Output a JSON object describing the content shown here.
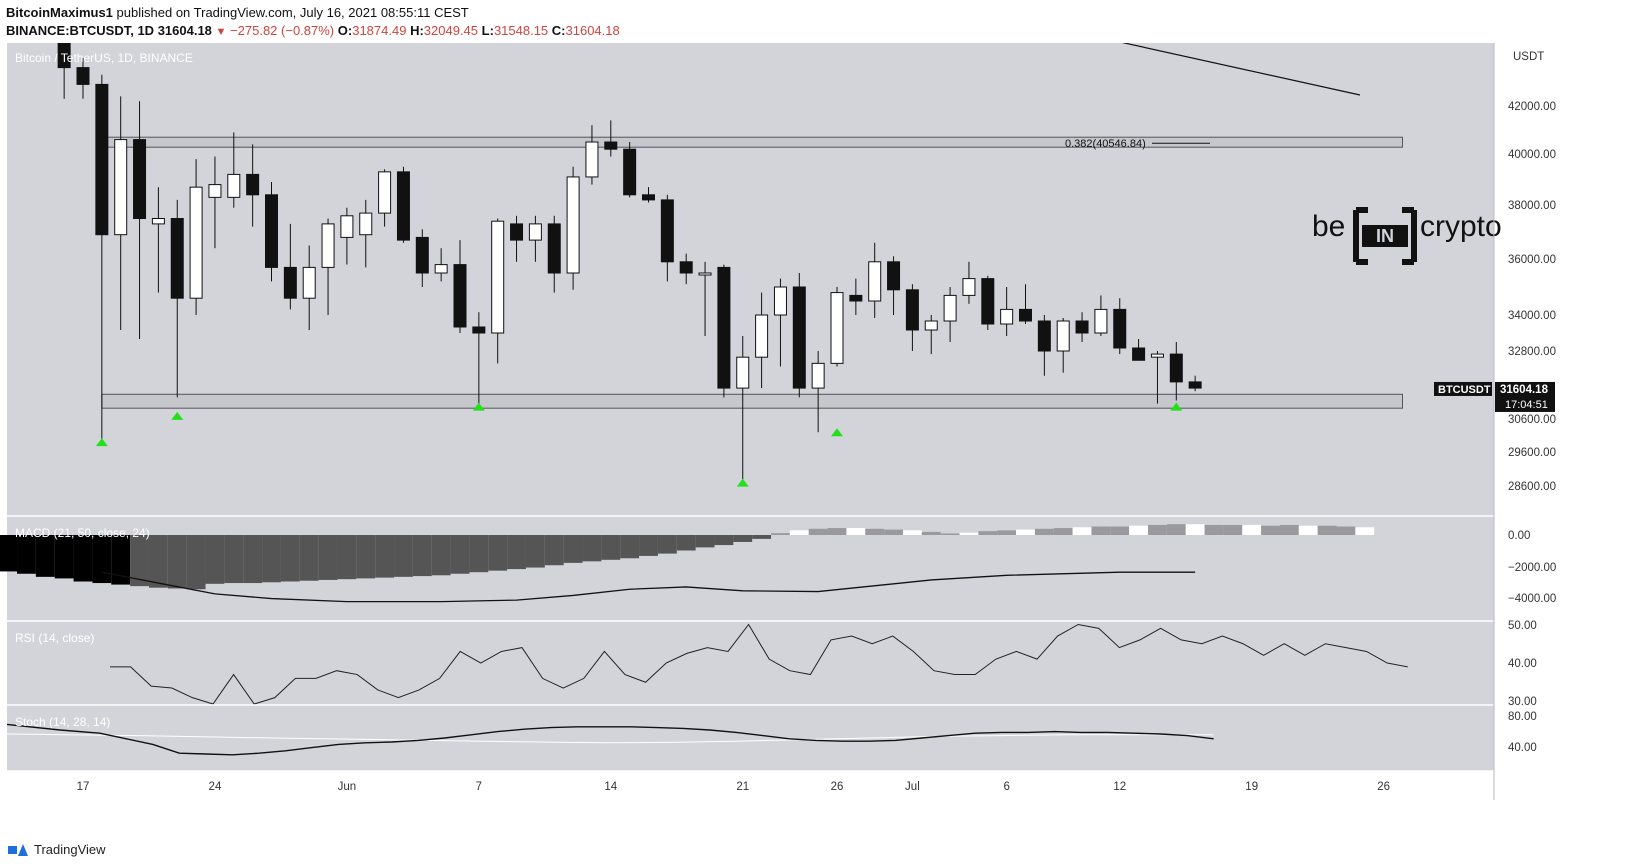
{
  "header": {
    "author": "BitcoinMaximus1",
    "published_text": "published on TradingView.com, July 16, 2021 08:55:11 CEST",
    "symbol": "BINANCE:BTCUSDT, 1D",
    "last": "31604.18",
    "change": "−275.82 (−0.87%)",
    "o_label": "O:",
    "o": "31874.49",
    "h_label": "H:",
    "h": "32049.45",
    "l_label": "L:",
    "l": "31548.15",
    "c_label": "C:",
    "c": "31604.18"
  },
  "footer": {
    "brand": "TradingView"
  },
  "watermark": {
    "text_left": "be",
    "text_mid": "IN",
    "text_right": "crypto"
  },
  "chart_data": [
    {
      "type": "candlestick",
      "pane_label": "Bitcoin / TetherUS, 1D, BINANCE",
      "currency_label": "USDT",
      "y_ticks": [
        28600,
        29600,
        30600,
        32800,
        34000,
        36000,
        38000,
        40000,
        42000
      ],
      "y_tick_labels": [
        "28600.00",
        "29600.00",
        "30600.00",
        "32800.00",
        "34000.00",
        "36000.00",
        "38000.00",
        "40000.00",
        "42000.00"
      ],
      "x_ticks": [
        {
          "day": 17,
          "label": "17"
        },
        {
          "day": 24,
          "label": "24"
        },
        {
          "day": 31,
          "label": "Jun"
        },
        {
          "day": 38,
          "label": "7"
        },
        {
          "day": 45,
          "label": "14"
        },
        {
          "day": 52,
          "label": "21"
        },
        {
          "day": 57,
          "label": "26"
        },
        {
          "day": 61,
          "label": "Jul"
        },
        {
          "day": 66,
          "label": "6"
        },
        {
          "day": 72,
          "label": "12"
        },
        {
          "day": 79,
          "label": "19"
        },
        {
          "day": 86,
          "label": "26"
        }
      ],
      "candles": [
        {
          "day": 16,
          "o": 45000,
          "h": 45800,
          "l": 42300,
          "c": 43600
        },
        {
          "day": 17,
          "o": 43600,
          "h": 44000,
          "l": 42300,
          "c": 42900
        },
        {
          "day": 18,
          "o": 42900,
          "h": 43300,
          "l": 30000,
          "c": 36900
        },
        {
          "day": 19,
          "o": 36900,
          "h": 42400,
          "l": 33500,
          "c": 40600
        },
        {
          "day": 20,
          "o": 40600,
          "h": 42200,
          "l": 33200,
          "c": 37500
        },
        {
          "day": 21,
          "o": 37300,
          "h": 38700,
          "l": 34800,
          "c": 37500
        },
        {
          "day": 22,
          "o": 37500,
          "h": 38200,
          "l": 31300,
          "c": 34600
        },
        {
          "day": 23,
          "o": 34600,
          "h": 39800,
          "l": 34000,
          "c": 38700
        },
        {
          "day": 24,
          "o": 38300,
          "h": 39900,
          "l": 36400,
          "c": 38800
        },
        {
          "day": 25,
          "o": 38300,
          "h": 40900,
          "l": 37900,
          "c": 39200
        },
        {
          "day": 26,
          "o": 39200,
          "h": 40400,
          "l": 37200,
          "c": 38400
        },
        {
          "day": 27,
          "o": 38400,
          "h": 38900,
          "l": 35200,
          "c": 35700
        },
        {
          "day": 28,
          "o": 35700,
          "h": 37300,
          "l": 34200,
          "c": 34600
        },
        {
          "day": 29,
          "o": 34600,
          "h": 36500,
          "l": 33500,
          "c": 35700
        },
        {
          "day": 30,
          "o": 35700,
          "h": 37500,
          "l": 34000,
          "c": 37300
        },
        {
          "day": 31,
          "o": 36800,
          "h": 37900,
          "l": 35800,
          "c": 37600
        },
        {
          "day": 32,
          "o": 36900,
          "h": 38200,
          "l": 35700,
          "c": 37700
        },
        {
          "day": 33,
          "o": 37700,
          "h": 39400,
          "l": 37200,
          "c": 39300
        },
        {
          "day": 34,
          "o": 39300,
          "h": 39500,
          "l": 36600,
          "c": 36700
        },
        {
          "day": 35,
          "o": 36800,
          "h": 37100,
          "l": 35000,
          "c": 35500
        },
        {
          "day": 36,
          "o": 35500,
          "h": 36400,
          "l": 35200,
          "c": 35800
        },
        {
          "day": 37,
          "o": 35800,
          "h": 36700,
          "l": 33400,
          "c": 33600
        },
        {
          "day": 38,
          "o": 33600,
          "h": 34100,
          "l": 31100,
          "c": 33400
        },
        {
          "day": 39,
          "o": 33400,
          "h": 37500,
          "l": 32400,
          "c": 37400
        },
        {
          "day": 40,
          "o": 37300,
          "h": 37600,
          "l": 35900,
          "c": 36700
        },
        {
          "day": 41,
          "o": 36700,
          "h": 37600,
          "l": 35900,
          "c": 37300
        },
        {
          "day": 42,
          "o": 37300,
          "h": 37600,
          "l": 34800,
          "c": 35500
        },
        {
          "day": 43,
          "o": 35500,
          "h": 39500,
          "l": 34900,
          "c": 39100
        },
        {
          "day": 44,
          "o": 39100,
          "h": 41200,
          "l": 38800,
          "c": 40500
        },
        {
          "day": 45,
          "o": 40500,
          "h": 41400,
          "l": 39900,
          "c": 40200
        },
        {
          "day": 46,
          "o": 40200,
          "h": 40500,
          "l": 38300,
          "c": 38400
        },
        {
          "day": 47,
          "o": 38400,
          "h": 38700,
          "l": 38100,
          "c": 38200
        },
        {
          "day": 48,
          "o": 38200,
          "h": 38400,
          "l": 35200,
          "c": 35900
        },
        {
          "day": 49,
          "o": 35900,
          "h": 36200,
          "l": 35100,
          "c": 35500
        },
        {
          "day": 50,
          "o": 35500,
          "h": 35900,
          "l": 33300,
          "c": 35500
        },
        {
          "day": 51,
          "o": 35700,
          "h": 35800,
          "l": 31300,
          "c": 31600
        },
        {
          "day": 52,
          "o": 31600,
          "h": 33300,
          "l": 28800,
          "c": 32600
        },
        {
          "day": 53,
          "o": 32600,
          "h": 34800,
          "l": 31600,
          "c": 34000
        },
        {
          "day": 54,
          "o": 34000,
          "h": 35300,
          "l": 32300,
          "c": 35000
        },
        {
          "day": 55,
          "o": 35000,
          "h": 35500,
          "l": 31300,
          "c": 31600
        },
        {
          "day": 56,
          "o": 31600,
          "h": 32800,
          "l": 30200,
          "c": 32400
        },
        {
          "day": 57,
          "o": 32400,
          "h": 35000,
          "l": 32300,
          "c": 34800
        },
        {
          "day": 58,
          "o": 34700,
          "h": 35300,
          "l": 34000,
          "c": 34500
        },
        {
          "day": 59,
          "o": 34500,
          "h": 36600,
          "l": 33900,
          "c": 35900
        },
        {
          "day": 60,
          "o": 35900,
          "h": 36100,
          "l": 34000,
          "c": 34900
        },
        {
          "day": 61,
          "o": 34900,
          "h": 35100,
          "l": 32800,
          "c": 33500
        },
        {
          "day": 62,
          "o": 33500,
          "h": 34000,
          "l": 32700,
          "c": 33800
        },
        {
          "day": 63,
          "o": 33800,
          "h": 35000,
          "l": 33100,
          "c": 34700
        },
        {
          "day": 64,
          "o": 34700,
          "h": 35900,
          "l": 34400,
          "c": 35300
        },
        {
          "day": 65,
          "o": 35300,
          "h": 35400,
          "l": 33500,
          "c": 33700
        },
        {
          "day": 66,
          "o": 33700,
          "h": 35000,
          "l": 33300,
          "c": 34200
        },
        {
          "day": 67,
          "o": 34200,
          "h": 35100,
          "l": 33700,
          "c": 33800
        },
        {
          "day": 68,
          "o": 33800,
          "h": 34000,
          "l": 32000,
          "c": 32800
        },
        {
          "day": 69,
          "o": 32800,
          "h": 33900,
          "l": 32100,
          "c": 33800
        },
        {
          "day": 70,
          "o": 33800,
          "h": 34100,
          "l": 33100,
          "c": 33400
        },
        {
          "day": 71,
          "o": 33400,
          "h": 34700,
          "l": 33300,
          "c": 34200
        },
        {
          "day": 72,
          "o": 34200,
          "h": 34600,
          "l": 32700,
          "c": 32900
        },
        {
          "day": 73,
          "o": 32900,
          "h": 33200,
          "l": 32500,
          "c": 32500
        },
        {
          "day": 74,
          "o": 32600,
          "h": 32800,
          "l": 31100,
          "c": 32700
        },
        {
          "day": 75,
          "o": 32700,
          "h": 33100,
          "l": 31200,
          "c": 31800
        },
        {
          "day": 76,
          "o": 31800,
          "h": 32000,
          "l": 31500,
          "c": 31600
        }
      ],
      "horizontal_zones": [
        {
          "label": "0.382(40546.84)",
          "low": 40300,
          "high": 40700,
          "from_day": 18,
          "to_day": 87
        },
        {
          "low": 30950,
          "high": 31400,
          "from_day": 18,
          "to_day": 87
        }
      ],
      "trendline": {
        "from": {
          "day": 66,
          "value": 42800
        },
        "to": {
          "day": 85,
          "value": 41200
        }
      },
      "up_arrows": [
        {
          "day": 18,
          "value": 29900
        },
        {
          "day": 22,
          "value": 30700
        },
        {
          "day": 38,
          "value": 31000
        },
        {
          "day": 52,
          "value": 28700
        },
        {
          "day": 57,
          "value": 30200
        },
        {
          "day": 75,
          "value": 31000
        }
      ],
      "price_label": {
        "symbol": "BTCUSDT",
        "price": "31604.18",
        "countdown": "17:04:51",
        "value": 31604.18
      }
    },
    {
      "type": "bar",
      "pane_label": "MACD (21, 50, close, 24)",
      "y_tick_labels": [
        "0.00",
        "−2000.00",
        "−4000.00"
      ],
      "histogram": [
        -1900,
        -2050,
        -2200,
        -2350,
        -2500,
        -2700,
        -2800,
        -3000,
        -3100,
        -3200,
        -3300,
        -3400,
        -3450,
        -3500,
        -3150,
        -3100,
        -3100,
        -3050,
        -3000,
        -2950,
        -2900,
        -2850,
        -2800,
        -2750,
        -2700,
        -2650,
        -2600,
        -2500,
        -2400,
        -2300,
        -2200,
        -2100,
        -1950,
        -1800,
        -1700,
        -1600,
        -1500,
        -1350,
        -1200,
        -1000,
        -800,
        -650,
        -450,
        -250,
        120,
        300,
        400,
        450,
        450,
        400,
        350,
        300,
        200,
        100,
        150,
        250,
        300,
        350,
        400,
        450,
        500,
        550,
        550,
        600,
        650,
        700,
        700,
        650,
        650,
        650,
        600,
        650,
        600,
        600,
        550,
        500
      ],
      "histogram_days_start": 10,
      "signal_line": [
        [
          18,
          -2400
        ],
        [
          21,
          -3100
        ],
        [
          24,
          -3800
        ],
        [
          27,
          -4100
        ],
        [
          31,
          -4300
        ],
        [
          36,
          -4300
        ],
        [
          40,
          -4200
        ],
        [
          43,
          -3900
        ],
        [
          46,
          -3500
        ],
        [
          49,
          -3350
        ],
        [
          52,
          -3600
        ],
        [
          56,
          -3650
        ],
        [
          58,
          -3400
        ],
        [
          62,
          -2900
        ],
        [
          66,
          -2600
        ],
        [
          72,
          -2400
        ],
        [
          76,
          -2400
        ]
      ]
    },
    {
      "type": "line",
      "pane_label": "RSI (14, close)",
      "y_tick_labels": [
        "50.00",
        "40.00",
        "30.00"
      ],
      "rsi": [
        [
          10,
          39
        ],
        [
          12,
          39
        ],
        [
          14,
          34
        ],
        [
          16,
          33.5
        ],
        [
          18,
          31
        ],
        [
          20,
          28
        ],
        [
          22,
          37
        ],
        [
          24,
          27
        ],
        [
          26,
          31
        ],
        [
          28,
          36
        ],
        [
          30,
          36
        ],
        [
          32,
          38
        ],
        [
          34,
          37
        ],
        [
          36,
          33
        ],
        [
          38,
          31
        ],
        [
          40,
          33
        ],
        [
          42,
          36
        ],
        [
          44,
          43
        ],
        [
          46,
          40
        ],
        [
          48,
          43
        ],
        [
          50,
          44
        ],
        [
          52,
          36
        ],
        [
          54,
          33.5
        ],
        [
          56,
          36
        ],
        [
          58,
          43
        ],
        [
          60,
          37
        ],
        [
          62,
          35
        ],
        [
          64,
          40
        ],
        [
          66,
          42.5
        ],
        [
          68,
          44
        ],
        [
          70,
          43
        ],
        [
          72,
          50
        ],
        [
          74,
          41
        ],
        [
          76,
          38
        ],
        [
          78,
          37
        ],
        [
          80,
          46
        ],
        [
          82,
          47
        ],
        [
          84,
          45
        ],
        [
          86,
          47
        ],
        [
          88,
          43
        ],
        [
          90,
          38
        ],
        [
          92,
          37
        ],
        [
          94,
          37
        ],
        [
          96,
          41
        ],
        [
          98,
          43
        ],
        [
          100,
          41
        ],
        [
          102,
          47
        ],
        [
          104,
          50
        ],
        [
          106,
          49
        ],
        [
          108,
          44
        ],
        [
          110,
          46
        ],
        [
          112,
          49
        ],
        [
          114,
          46
        ],
        [
          116,
          45
        ],
        [
          118,
          47
        ],
        [
          120,
          45
        ],
        [
          122,
          42
        ],
        [
          124,
          45
        ],
        [
          126,
          42
        ],
        [
          128,
          45
        ],
        [
          130,
          44
        ],
        [
          132,
          43
        ],
        [
          134,
          40
        ],
        [
          136,
          39
        ]
      ]
    },
    {
      "type": "line",
      "pane_label": "Stoch (14, 28, 14)",
      "y_tick_labels": [
        "80.00",
        "40.00"
      ],
      "k_line": [
        [
          0,
          94
        ],
        [
          8,
          80
        ],
        [
          14,
          72
        ],
        [
          18,
          58
        ],
        [
          22,
          44
        ],
        [
          26,
          22
        ],
        [
          30,
          20
        ],
        [
          34,
          18
        ],
        [
          38,
          22
        ],
        [
          42,
          28
        ],
        [
          46,
          36
        ],
        [
          50,
          44
        ],
        [
          54,
          48
        ],
        [
          58,
          50
        ],
        [
          62,
          54
        ],
        [
          66,
          60
        ],
        [
          70,
          68
        ],
        [
          74,
          76
        ],
        [
          78,
          82
        ],
        [
          82,
          86
        ],
        [
          86,
          88
        ],
        [
          90,
          88
        ],
        [
          94,
          88
        ],
        [
          98,
          86
        ],
        [
          102,
          84
        ],
        [
          106,
          80
        ],
        [
          110,
          74
        ],
        [
          114,
          66
        ],
        [
          118,
          58
        ],
        [
          122,
          54
        ],
        [
          126,
          52
        ],
        [
          130,
          52
        ],
        [
          134,
          54
        ],
        [
          138,
          60
        ],
        [
          142,
          66
        ],
        [
          146,
          72
        ],
        [
          150,
          74
        ],
        [
          154,
          74
        ],
        [
          158,
          76
        ],
        [
          162,
          74
        ],
        [
          166,
          74
        ],
        [
          170,
          72
        ],
        [
          174,
          70
        ],
        [
          178,
          66
        ],
        [
          182,
          58
        ]
      ],
      "d_line": [
        [
          0,
          70
        ],
        [
          20,
          66
        ],
        [
          40,
          60
        ],
        [
          60,
          55
        ],
        [
          80,
          50
        ],
        [
          90,
          48
        ],
        [
          100,
          49
        ],
        [
          110,
          52
        ],
        [
          120,
          56
        ],
        [
          130,
          60
        ],
        [
          140,
          64
        ],
        [
          150,
          66
        ],
        [
          160,
          68
        ],
        [
          170,
          68
        ],
        [
          182,
          68
        ]
      ]
    }
  ]
}
